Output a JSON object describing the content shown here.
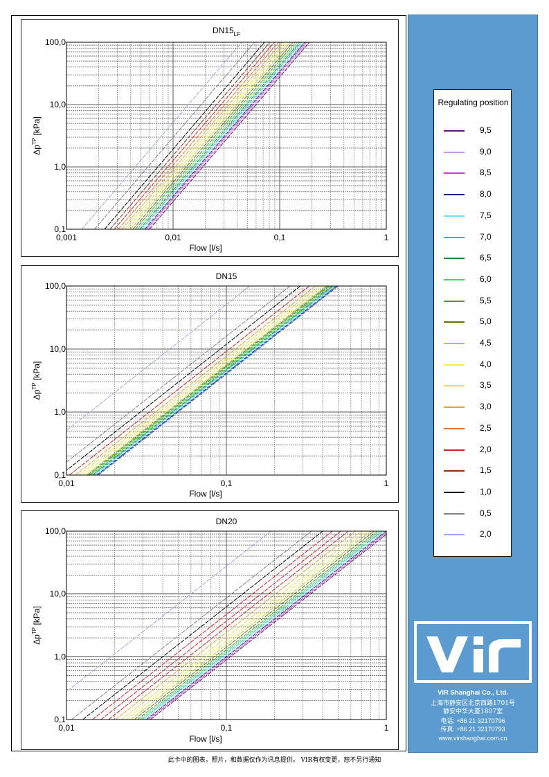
{
  "footer_text": "此卡中的图表，照片，和数据仅作为讯息提供。 VIR有权变更，恕不另行通知",
  "company": {
    "name": "VIR Shanghai Co., Ltd.",
    "address_line1": "上海市静安区北京西路1701号",
    "address_line2": "静安中华大厦1807室",
    "phone": "电话: +86 21 32170796",
    "fax": "传真: +86 21 32170793",
    "website": "www.virshanghai.com.cn",
    "logo_text": "VIR"
  },
  "legend": {
    "title": "Regulating position",
    "items": [
      {
        "label": "9,5",
        "color": "#5a1670"
      },
      {
        "label": "9,0",
        "color": "#c79ae0"
      },
      {
        "label": "8,5",
        "color": "#e030c8"
      },
      {
        "label": "8,0",
        "color": "#1a1a90"
      },
      {
        "label": "7,5",
        "color": "#5ce8f0"
      },
      {
        "label": "7,0",
        "color": "#30b8b0"
      },
      {
        "label": "6,5",
        "color": "#1c8a2a"
      },
      {
        "label": "6,0",
        "color": "#3ae050"
      },
      {
        "label": "5,5",
        "color": "#3ea03a"
      },
      {
        "label": "5,0",
        "color": "#6a7010"
      },
      {
        "label": "4,5",
        "color": "#a8d030"
      },
      {
        "label": "4,0",
        "color": "#f4f030"
      },
      {
        "label": "3,5",
        "color": "#e8d860"
      },
      {
        "label": "3,0",
        "color": "#e0a828"
      },
      {
        "label": "2,5",
        "color": "#f07020"
      },
      {
        "label": "2,0",
        "color": "#d02020"
      },
      {
        "label": "1,5",
        "color": "#7a3a10"
      },
      {
        "label": "1,0",
        "color": "#000000"
      },
      {
        "label": "0,5",
        "color": "#808080"
      },
      {
        "label": "2,0",
        "color": "#9aa8e8"
      }
    ]
  },
  "chart_data": [
    {
      "type": "line",
      "title": "DN15",
      "title_sub": "LF",
      "xlabel": "Flow [l/s]",
      "ylabel": "Δp",
      "ylabel_sup": "TP",
      "ylabel_unit": " [kPa]",
      "x_scale": "log",
      "y_scale": "log",
      "xlim": [
        0.001,
        1
      ],
      "ylim": [
        0.1,
        100
      ],
      "x_ticks": [
        "0,001",
        "0,01",
        "0,1",
        "1"
      ],
      "y_ticks": [
        "0,1",
        "1,0",
        "10,0",
        "100,0"
      ],
      "grid": true,
      "series": [
        {
          "flow_at_1kPa": 0.0044,
          "color": "#9aa8e8"
        },
        {
          "flow_at_1kPa": 0.0058,
          "color": "#808080"
        },
        {
          "flow_at_1kPa": 0.0072,
          "color": "#000000"
        },
        {
          "flow_at_1kPa": 0.0081,
          "color": "#7a3a10"
        },
        {
          "flow_at_1kPa": 0.0089,
          "color": "#d02020"
        },
        {
          "flow_at_1kPa": 0.0097,
          "color": "#f07020"
        },
        {
          "flow_at_1kPa": 0.0105,
          "color": "#e0a828"
        },
        {
          "flow_at_1kPa": 0.0112,
          "color": "#e8d860"
        },
        {
          "flow_at_1kPa": 0.0119,
          "color": "#f4f030"
        },
        {
          "flow_at_1kPa": 0.0126,
          "color": "#a8d030"
        },
        {
          "flow_at_1kPa": 0.0133,
          "color": "#6a7010"
        },
        {
          "flow_at_1kPa": 0.014,
          "color": "#3ea03a"
        },
        {
          "flow_at_1kPa": 0.0147,
          "color": "#3ae050"
        },
        {
          "flow_at_1kPa": 0.0154,
          "color": "#1c8a2a"
        },
        {
          "flow_at_1kPa": 0.016,
          "color": "#30b8b0"
        },
        {
          "flow_at_1kPa": 0.0166,
          "color": "#5ce8f0"
        },
        {
          "flow_at_1kPa": 0.0172,
          "color": "#1a1a90"
        },
        {
          "flow_at_1kPa": 0.0178,
          "color": "#e030c8"
        },
        {
          "flow_at_1kPa": 0.0184,
          "color": "#c79ae0"
        },
        {
          "flow_at_1kPa": 0.019,
          "color": "#5a1670"
        }
      ]
    },
    {
      "type": "line",
      "title": "DN15",
      "title_sub": "",
      "xlabel": "Flow [l/s]",
      "ylabel": "Δp",
      "ylabel_sup": "TP",
      "ylabel_unit": " [kPa]",
      "x_scale": "log",
      "y_scale": "log",
      "xlim": [
        0.01,
        1
      ],
      "ylim": [
        0.1,
        100
      ],
      "x_ticks": [
        "0,01",
        "0,1",
        "1"
      ],
      "y_ticks": [
        "0,1",
        "1,0",
        "10,0",
        "100,0"
      ],
      "grid": true,
      "series": [
        {
          "flow_at_1kPa": 0.014,
          "color": "#9aa8e8"
        },
        {
          "flow_at_1kPa": 0.025,
          "color": "#808080"
        },
        {
          "flow_at_1kPa": 0.029,
          "color": "#000000"
        },
        {
          "flow_at_1kPa": 0.033,
          "color": "#d02020"
        },
        {
          "flow_at_1kPa": 0.036,
          "color": "#e0a828"
        },
        {
          "flow_at_1kPa": 0.038,
          "color": "#e8d860"
        },
        {
          "flow_at_1kPa": 0.04,
          "color": "#f4f030"
        },
        {
          "flow_at_1kPa": 0.042,
          "color": "#a8d030"
        },
        {
          "flow_at_1kPa": 0.043,
          "color": "#6a7010"
        },
        {
          "flow_at_1kPa": 0.044,
          "color": "#3ea03a"
        },
        {
          "flow_at_1kPa": 0.045,
          "color": "#3ae050"
        },
        {
          "flow_at_1kPa": 0.046,
          "color": "#1c8a2a"
        },
        {
          "flow_at_1kPa": 0.047,
          "color": "#30b8b0"
        },
        {
          "flow_at_1kPa": 0.048,
          "color": "#5ce8f0"
        },
        {
          "flow_at_1kPa": 0.049,
          "color": "#1a1a90"
        },
        {
          "flow_at_1kPa": 0.05,
          "color": "#3060d0"
        }
      ]
    },
    {
      "type": "line",
      "title": "DN20",
      "title_sub": "",
      "xlabel": "Flow [l/s]",
      "ylabel": "Δp",
      "ylabel_sup": "TP",
      "ylabel_unit": " [kPa]",
      "x_scale": "log",
      "y_scale": "log",
      "xlim": [
        0.01,
        1
      ],
      "ylim": [
        0.1,
        100
      ],
      "x_ticks": [
        "0,01",
        "0,1",
        "1"
      ],
      "y_ticks": [
        "0,1",
        "1,0",
        "10,0",
        "100,0"
      ],
      "grid": true,
      "series": [
        {
          "flow_at_1kPa": 0.019,
          "color": "#9aa8e8"
        },
        {
          "flow_at_1kPa": 0.034,
          "color": "#808080"
        },
        {
          "flow_at_1kPa": 0.04,
          "color": "#000000"
        },
        {
          "flow_at_1kPa": 0.046,
          "color": "#d02020"
        },
        {
          "flow_at_1kPa": 0.052,
          "color": "#d02020"
        },
        {
          "flow_at_1kPa": 0.058,
          "color": "#d02020"
        },
        {
          "flow_at_1kPa": 0.064,
          "color": "#e0a828"
        },
        {
          "flow_at_1kPa": 0.07,
          "color": "#e8d860"
        },
        {
          "flow_at_1kPa": 0.075,
          "color": "#f4f030"
        },
        {
          "flow_at_1kPa": 0.08,
          "color": "#a8d030"
        },
        {
          "flow_at_1kPa": 0.084,
          "color": "#6a7010"
        },
        {
          "flow_at_1kPa": 0.088,
          "color": "#3ea03a"
        },
        {
          "flow_at_1kPa": 0.091,
          "color": "#3ae050"
        },
        {
          "flow_at_1kPa": 0.094,
          "color": "#30b8b0"
        },
        {
          "flow_at_1kPa": 0.097,
          "color": "#5ce8f0"
        },
        {
          "flow_at_1kPa": 0.1,
          "color": "#1a1a90"
        },
        {
          "flow_at_1kPa": 0.103,
          "color": "#e030c8"
        },
        {
          "flow_at_1kPa": 0.106,
          "color": "#5a1670"
        }
      ]
    }
  ]
}
